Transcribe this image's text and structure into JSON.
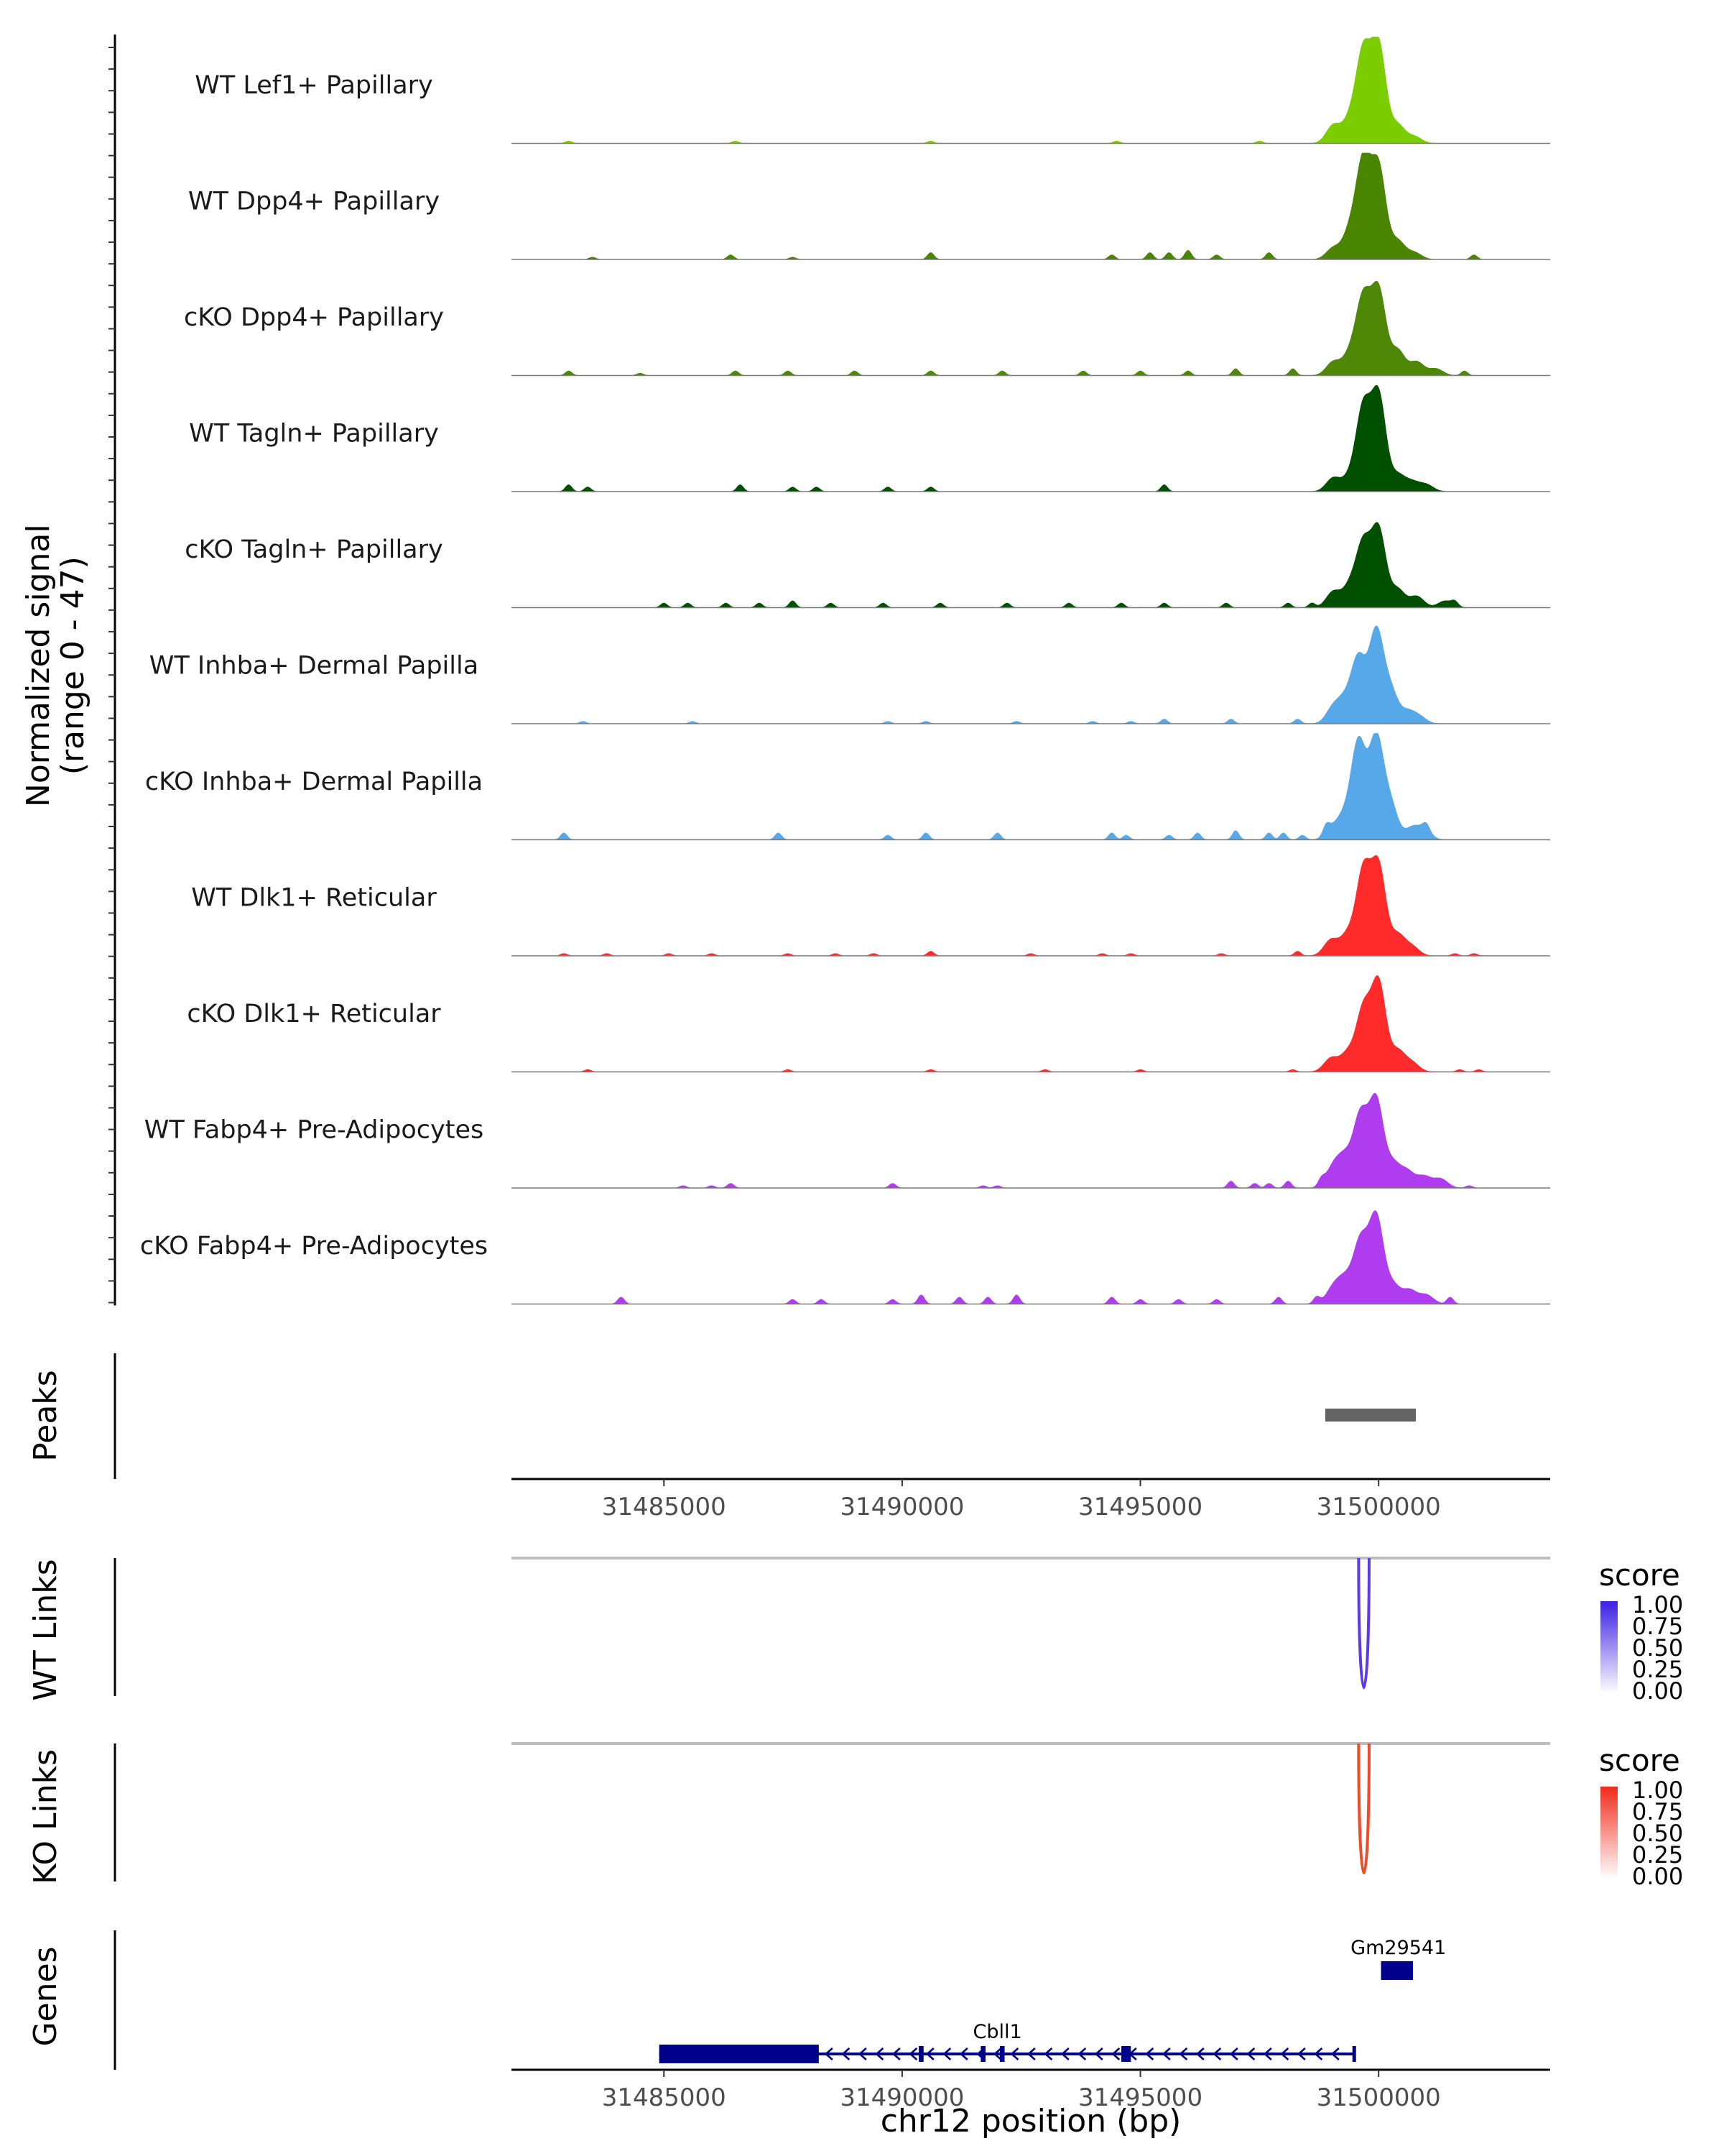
{
  "chart_data": {
    "type": "area",
    "title": "",
    "xlabel": "chr12 position (bp)",
    "ylabel": "Normalized signal\n(range 0 - 47)",
    "ylabel_lines": [
      "Normalized signal",
      "(range 0 - 47)"
    ],
    "chromosome": "chr12",
    "xlim": [
      31481800,
      31503600
    ],
    "ylim": [
      0,
      47
    ],
    "x_ticks": [
      31485000,
      31490000,
      31495000,
      31500000
    ],
    "x_tick_labels": [
      "31485000",
      "31490000",
      "31495000",
      "31500000"
    ],
    "grid": false,
    "tracks": [
      {
        "name": "WT Lef1+ Papillary",
        "color": "#7CCD00",
        "peaks": [
          [
            31499680,
            39
          ],
          [
            31500000,
            43
          ],
          [
            31499400,
            10
          ],
          [
            31499050,
            8
          ],
          [
            31500400,
            8
          ],
          [
            31500750,
            3
          ]
        ],
        "noise": [
          [
            31483000,
            1
          ],
          [
            31486500,
            1
          ],
          [
            31490600,
            1
          ],
          [
            31494500,
            1
          ],
          [
            31497500,
            1
          ]
        ]
      },
      {
        "name": "WT Dpp4+ Papillary",
        "color": "#4A8500",
        "peaks": [
          [
            31499680,
            42
          ],
          [
            31500000,
            40
          ],
          [
            31499400,
            12
          ],
          [
            31499050,
            5
          ],
          [
            31500400,
            8
          ],
          [
            31500750,
            3
          ]
        ],
        "noise": [
          [
            31483500,
            1
          ],
          [
            31486400,
            2
          ],
          [
            31487700,
            1
          ],
          [
            31490600,
            3
          ],
          [
            31494400,
            2
          ],
          [
            31495200,
            3
          ],
          [
            31495600,
            3
          ],
          [
            31496000,
            4
          ],
          [
            31496600,
            2
          ],
          [
            31497700,
            3
          ],
          [
            31502000,
            2
          ]
        ]
      },
      {
        "name": "cKO Dpp4+ Papillary",
        "color": "#4E8706",
        "peaks": [
          [
            31499680,
            33
          ],
          [
            31500000,
            37
          ],
          [
            31499400,
            9
          ],
          [
            31499050,
            6
          ],
          [
            31500400,
            11
          ],
          [
            31500800,
            6
          ],
          [
            31501200,
            3
          ]
        ],
        "noise": [
          [
            31483000,
            2
          ],
          [
            31484500,
            1
          ],
          [
            31486500,
            2
          ],
          [
            31487600,
            2
          ],
          [
            31489000,
            2
          ],
          [
            31490600,
            2
          ],
          [
            31492100,
            2
          ],
          [
            31493800,
            2
          ],
          [
            31495000,
            2
          ],
          [
            31496000,
            2
          ],
          [
            31497000,
            3
          ],
          [
            31498200,
            3
          ],
          [
            31501800,
            2
          ]
        ]
      },
      {
        "name": "WT Tagln+ Papillary",
        "color": "#005000",
        "peaks": [
          [
            31499680,
            36
          ],
          [
            31500000,
            42
          ],
          [
            31499400,
            6
          ],
          [
            31499050,
            6
          ],
          [
            31500400,
            7
          ],
          [
            31500700,
            4
          ],
          [
            31501000,
            3
          ]
        ],
        "noise": [
          [
            31483000,
            3
          ],
          [
            31483400,
            2
          ],
          [
            31486600,
            3
          ],
          [
            31487700,
            2
          ],
          [
            31488200,
            2
          ],
          [
            31489700,
            2
          ],
          [
            31490600,
            2
          ],
          [
            31495500,
            3
          ]
        ]
      },
      {
        "name": "cKO Tagln+ Papillary",
        "color": "#005000",
        "peaks": [
          [
            31499680,
            27
          ],
          [
            31500000,
            34
          ],
          [
            31499400,
            9
          ],
          [
            31499050,
            7
          ],
          [
            31500400,
            8
          ],
          [
            31500800,
            5
          ],
          [
            31501400,
            3
          ]
        ],
        "noise": [
          [
            31485000,
            2
          ],
          [
            31485500,
            2
          ],
          [
            31486300,
            2
          ],
          [
            31487000,
            2
          ],
          [
            31487700,
            3
          ],
          [
            31488500,
            2
          ],
          [
            31489600,
            2
          ],
          [
            31490800,
            2
          ],
          [
            31492200,
            2
          ],
          [
            31493500,
            2
          ],
          [
            31494600,
            2
          ],
          [
            31495500,
            2
          ],
          [
            31496800,
            2
          ],
          [
            31498100,
            2
          ],
          [
            31498600,
            2
          ],
          [
            31501600,
            2
          ]
        ]
      },
      {
        "name": "WT Inhba+ Dermal Papilla",
        "color": "#56A8E8",
        "peaks": [
          [
            31499580,
            28
          ],
          [
            31499950,
            40
          ],
          [
            31499300,
            9
          ],
          [
            31499050,
            7
          ],
          [
            31500250,
            14
          ],
          [
            31500600,
            5
          ],
          [
            31500850,
            3
          ]
        ],
        "noise": [
          [
            31483300,
            1
          ],
          [
            31485600,
            1
          ],
          [
            31489700,
            1
          ],
          [
            31490500,
            1
          ],
          [
            31492400,
            1
          ],
          [
            31494000,
            1
          ],
          [
            31494800,
            1
          ],
          [
            31495500,
            2
          ],
          [
            31496900,
            2
          ],
          [
            31498300,
            2
          ]
        ]
      },
      {
        "name": "cKO Inhba+ Dermal Papilla",
        "color": "#56A8E8",
        "peaks": [
          [
            31499580,
            42
          ],
          [
            31499950,
            44
          ],
          [
            31499300,
            9
          ],
          [
            31499050,
            5
          ],
          [
            31500250,
            15
          ],
          [
            31500700,
            5
          ],
          [
            31500950,
            4
          ]
        ],
        "noise": [
          [
            31482900,
            3
          ],
          [
            31487400,
            3
          ],
          [
            31489700,
            2
          ],
          [
            31490500,
            3
          ],
          [
            31492000,
            3
          ],
          [
            31494400,
            3
          ],
          [
            31494700,
            2
          ],
          [
            31495600,
            2
          ],
          [
            31496200,
            3
          ],
          [
            31497000,
            4
          ],
          [
            31497700,
            3
          ],
          [
            31498000,
            3
          ],
          [
            31498400,
            2
          ],
          [
            31498900,
            4
          ],
          [
            31501000,
            3
          ]
        ]
      },
      {
        "name": "WT Dlk1+ Reticular",
        "color": "#FF2A2A",
        "peaks": [
          [
            31499680,
            37
          ],
          [
            31500000,
            39
          ],
          [
            31499350,
            9
          ],
          [
            31499000,
            7
          ],
          [
            31500400,
            9
          ],
          [
            31500700,
            4
          ]
        ],
        "noise": [
          [
            31482900,
            1
          ],
          [
            31483800,
            1
          ],
          [
            31485100,
            1
          ],
          [
            31486000,
            1
          ],
          [
            31487600,
            1
          ],
          [
            31488600,
            1
          ],
          [
            31489400,
            1
          ],
          [
            31490600,
            2
          ],
          [
            31492700,
            1
          ],
          [
            31494200,
            1
          ],
          [
            31494800,
            1
          ],
          [
            31496700,
            1
          ],
          [
            31498300,
            2
          ],
          [
            31501600,
            1
          ],
          [
            31502000,
            1
          ]
        ]
      },
      {
        "name": "cKO Dlk1+ Reticular",
        "color": "#FF2A2A",
        "peaks": [
          [
            31499680,
            27
          ],
          [
            31500000,
            39
          ],
          [
            31499350,
            8
          ],
          [
            31499000,
            6
          ],
          [
            31500400,
            9
          ],
          [
            31500700,
            4
          ]
        ],
        "noise": [
          [
            31483400,
            1
          ],
          [
            31487600,
            1
          ],
          [
            31490600,
            1
          ],
          [
            31493000,
            1
          ],
          [
            31495000,
            1
          ],
          [
            31498200,
            1
          ],
          [
            31501700,
            1
          ],
          [
            31502100,
            1
          ]
        ]
      },
      {
        "name": "WT Fabp4+ Pre-Adipocytes",
        "color": "#B03CF0",
        "peaks": [
          [
            31499620,
            31
          ],
          [
            31499950,
            38
          ],
          [
            31499300,
            12
          ],
          [
            31499050,
            9
          ],
          [
            31500300,
            10
          ],
          [
            31500600,
            7
          ],
          [
            31500950,
            5
          ],
          [
            31501300,
            4
          ]
        ],
        "noise": [
          [
            31485400,
            1
          ],
          [
            31486000,
            1
          ],
          [
            31486400,
            2
          ],
          [
            31489800,
            2
          ],
          [
            31491700,
            1
          ],
          [
            31492000,
            1
          ],
          [
            31496900,
            3
          ],
          [
            31497400,
            2
          ],
          [
            31497700,
            2
          ],
          [
            31498100,
            3
          ],
          [
            31498800,
            3
          ],
          [
            31501900,
            1
          ]
        ]
      },
      {
        "name": "cKO Fabp4+ Pre-Adipocytes",
        "color": "#B03CF0",
        "peaks": [
          [
            31499620,
            27
          ],
          [
            31499950,
            38
          ],
          [
            31499300,
            10
          ],
          [
            31499050,
            7
          ],
          [
            31500300,
            8
          ],
          [
            31500650,
            6
          ],
          [
            31501000,
            4
          ]
        ],
        "noise": [
          [
            31484100,
            3
          ],
          [
            31487700,
            2
          ],
          [
            31488300,
            2
          ],
          [
            31489800,
            2
          ],
          [
            31490400,
            4
          ],
          [
            31491200,
            3
          ],
          [
            31491800,
            3
          ],
          [
            31492400,
            4
          ],
          [
            31494400,
            3
          ],
          [
            31495000,
            2
          ],
          [
            31495800,
            2
          ],
          [
            31496600,
            2
          ],
          [
            31497900,
            3
          ],
          [
            31498700,
            3
          ],
          [
            31501500,
            3
          ]
        ]
      }
    ],
    "peaks_track": {
      "label": "Peaks",
      "regions": [
        [
          31498880,
          31500780
        ]
      ],
      "color": "#636363"
    },
    "link_tracks": [
      {
        "label": "WT Links",
        "color": "#5B3BE8",
        "links": [
          {
            "start": 31499580,
            "end": 31499800,
            "score": 0.9
          }
        ],
        "legend_title": "score",
        "legend_colors": [
          "#ffffff",
          "#3B1FE3"
        ],
        "legend_ticks": [
          "1.00",
          "0.75",
          "0.50",
          "0.25",
          "0.00"
        ]
      },
      {
        "label": "KO Links",
        "color": "#F04A2A",
        "links": [
          {
            "start": 31499580,
            "end": 31499800,
            "score": 0.8
          }
        ],
        "legend_title": "score",
        "legend_colors": [
          "#ffffff",
          "#F02B1B"
        ],
        "legend_ticks": [
          "1.00",
          "0.75",
          "0.50",
          "0.25",
          "0.00"
        ]
      }
    ],
    "genes_track": {
      "label": "Genes",
      "color": "#00008B",
      "genes": [
        {
          "name": "Gm29541",
          "start": 31500050,
          "end": 31500720,
          "strand": "+",
          "exons": [
            [
              31500050,
              31500720
            ]
          ],
          "thick": true
        },
        {
          "name": "Cbll1",
          "start": 31484900,
          "end": 31499500,
          "strand": "-",
          "exons": [
            [
              31484900,
              31488250
            ],
            [
              31490350,
              31490450
            ],
            [
              31491650,
              31491750
            ],
            [
              31492050,
              31492150
            ],
            [
              31494600,
              31494800
            ],
            [
              31499450,
              31499500
            ]
          ],
          "thick": false
        }
      ]
    }
  }
}
